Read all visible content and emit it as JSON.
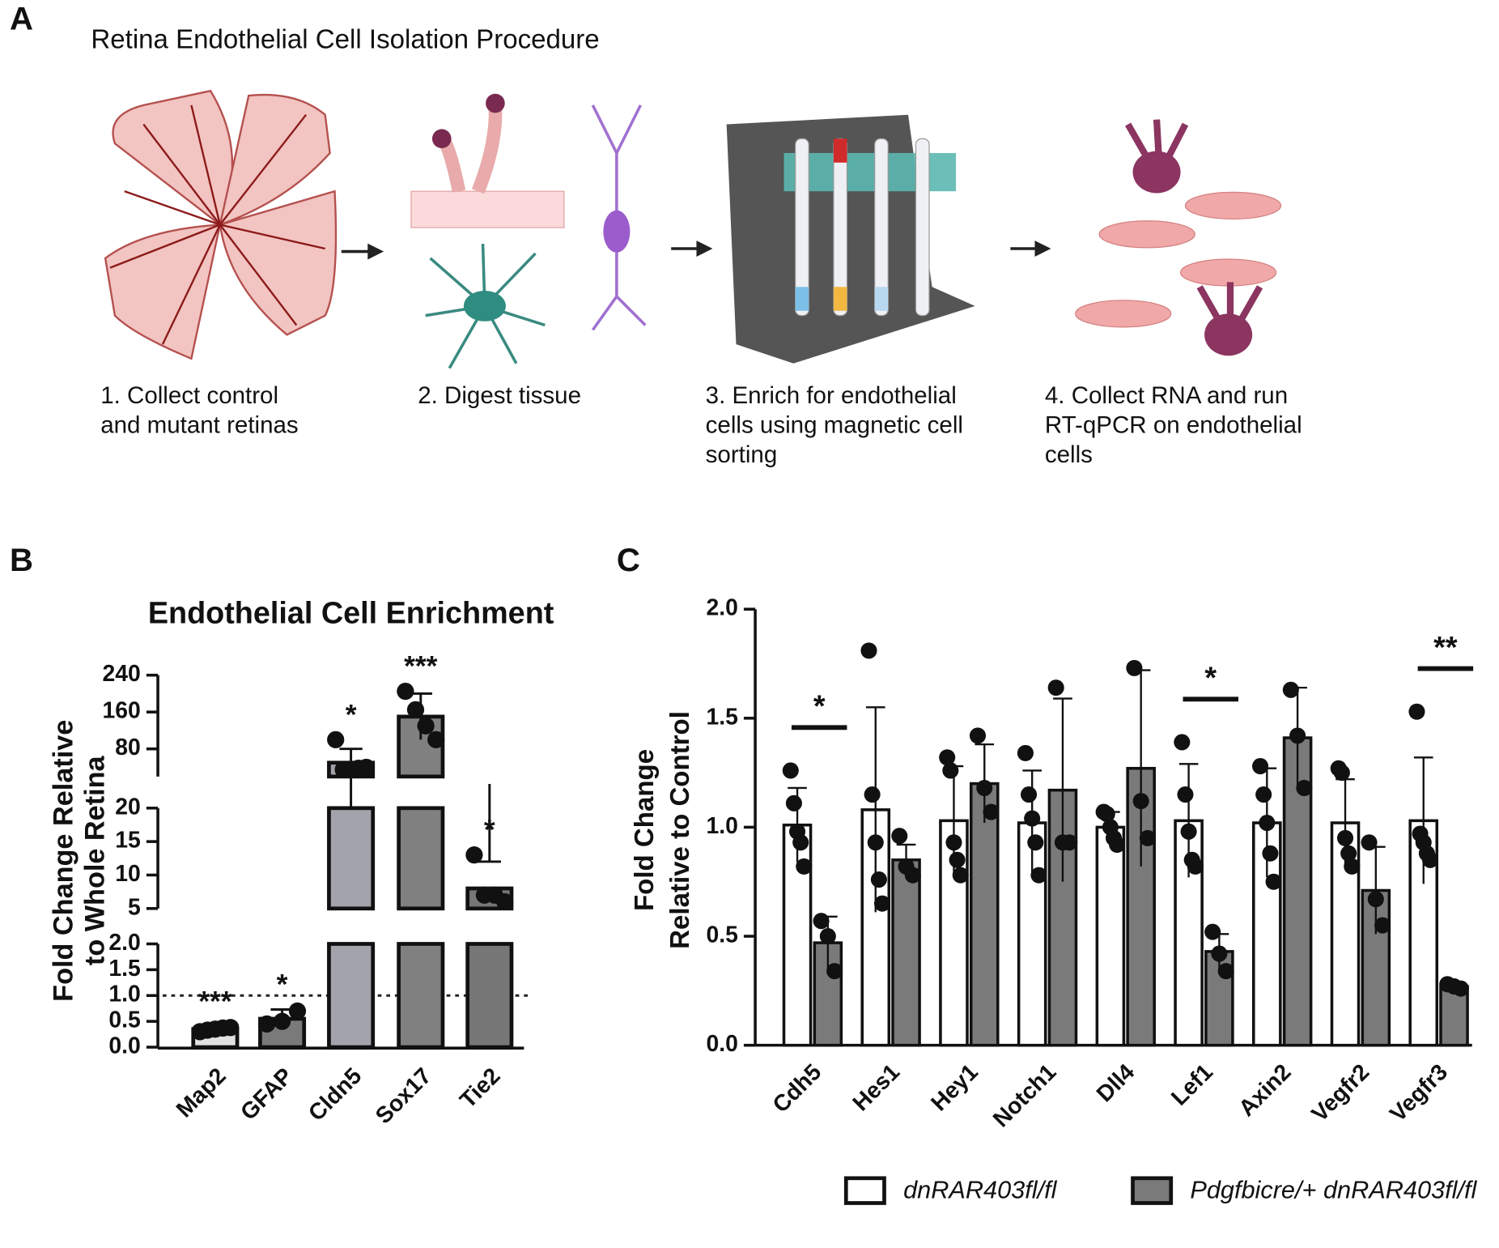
{
  "panel_labels": [
    "A",
    "B",
    "C"
  ],
  "procedure": {
    "title": "Retina Endothelial Cell Isolation Procedure",
    "steps": [
      [
        "1. Collect control",
        "and mutant retinas"
      ],
      [
        "2. Digest tissue"
      ],
      [
        "3. Enrich for endothelial",
        "cells using magnetic cell",
        "sorting"
      ],
      [
        "4. Collect RNA and run",
        "RT-qPCR on endothelial",
        "cells"
      ]
    ]
  },
  "chart_data": [
    {
      "type": "broken_bar",
      "title": "Endothelial Cell Enrichment",
      "ylabel": [
        "Fold Change Relative",
        "to Whole Retina"
      ],
      "categories": [
        "Map2",
        "GFAP",
        "Cldn5",
        "Sox17",
        "Tie2"
      ],
      "values": [
        0.35,
        0.55,
        50,
        150,
        8
      ],
      "errors": [
        0.05,
        0.18,
        30,
        50,
        4
      ],
      "points": [
        [
          0.3,
          0.33,
          0.35,
          0.37,
          0.38
        ],
        [
          0.45,
          0.5,
          0.7
        ],
        [
          100,
          35,
          35,
          38,
          40
        ],
        [
          205,
          165,
          130,
          100
        ],
        [
          13,
          7,
          7,
          6
        ]
      ],
      "colors": [
        "#e2e2e2",
        "#7a7a7a",
        "#a3a3ab",
        "#808080",
        "#777777"
      ],
      "annotations": [
        "***",
        "*",
        "*",
        "***",
        "*"
      ],
      "refline": 1,
      "y_segments": [
        {
          "ylim": [
            0,
            2
          ],
          "yticks": [
            {
              "value": 0,
              "label": "0.0"
            },
            0.5,
            {
              "value": 1,
              "label": "1.0"
            },
            1.5,
            {
              "value": 2,
              "label": "2.0"
            }
          ]
        },
        {
          "ylim": [
            5,
            20
          ],
          "yticks": [
            5,
            10,
            15,
            20
          ]
        },
        {
          "ylim": [
            20,
            240
          ],
          "yticks": [
            80,
            160,
            240
          ]
        }
      ]
    },
    {
      "type": "grouped_bar",
      "ylabel": [
        "Fold Change",
        "Relative to Control"
      ],
      "categories": [
        "Cdh5",
        "Hes1",
        "Hey1",
        "Notch1",
        "Dll4",
        "Lef1",
        "Axin2",
        "Vegfr2",
        "Vegfr3"
      ],
      "ylim": [
        0,
        2
      ],
      "yticks": [
        {
          "value": 0,
          "label": "0.0"
        },
        0.5,
        {
          "value": 1,
          "label": "1.0"
        },
        1.5,
        {
          "value": 2,
          "label": "2.0"
        }
      ],
      "significance": [
        "*",
        null,
        null,
        null,
        null,
        "*",
        null,
        null,
        "**"
      ],
      "series": [
        {
          "name": "dnRAR403fl/fl",
          "color": "#ffffff",
          "values": [
            1.01,
            1.08,
            1.03,
            1.02,
            1.0,
            1.03,
            1.02,
            1.02,
            1.03
          ],
          "errors": [
            0.17,
            0.47,
            0.25,
            0.24,
            0.07,
            0.26,
            0.25,
            0.2,
            0.29
          ],
          "points": [
            [
              1.26,
              1.11,
              0.98,
              0.93,
              0.82
            ],
            [
              1.81,
              1.15,
              0.93,
              0.76,
              0.65
            ],
            [
              1.32,
              1.26,
              0.93,
              0.85,
              0.78
            ],
            [
              1.34,
              1.15,
              1.04,
              0.93,
              0.78
            ],
            [
              1.07,
              1.06,
              1.0,
              0.95,
              0.92
            ],
            [
              1.39,
              1.15,
              0.98,
              0.85,
              0.82
            ],
            [
              1.28,
              1.15,
              1.02,
              0.88,
              0.75
            ],
            [
              1.27,
              1.25,
              0.95,
              0.88,
              0.82
            ],
            [
              1.53,
              0.97,
              0.93,
              0.88,
              0.85
            ]
          ]
        },
        {
          "name": "Pdgfbicre/+ dnRAR403fl/fl",
          "color": "#7a7a7a",
          "values": [
            0.47,
            0.85,
            1.2,
            1.17,
            1.27,
            0.43,
            1.41,
            0.71,
            0.27
          ],
          "errors": [
            0.12,
            0.07,
            0.18,
            0.42,
            0.45,
            0.08,
            0.23,
            0.2,
            0.02
          ],
          "points": [
            [
              0.57,
              0.5,
              0.34
            ],
            [
              0.96,
              0.82,
              0.78
            ],
            [
              1.42,
              1.18,
              1.07
            ],
            [
              1.64,
              0.93,
              0.93
            ],
            [
              1.73,
              1.12,
              0.95
            ],
            [
              0.52,
              0.42,
              0.34
            ],
            [
              1.63,
              1.42,
              1.18
            ],
            [
              0.93,
              0.67,
              0.55
            ],
            [
              0.28,
              0.27,
              0.26
            ]
          ]
        }
      ]
    }
  ]
}
